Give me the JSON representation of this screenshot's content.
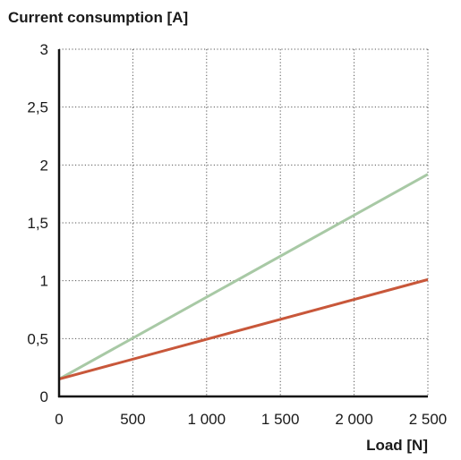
{
  "chart_data": {
    "type": "line",
    "ylabel": "Current consumption [A]",
    "xlabel": "Load [N]",
    "xlim": [
      0,
      2500
    ],
    "ylim": [
      0,
      3
    ],
    "x_ticks": [
      0,
      500,
      1000,
      1500,
      2000,
      2500
    ],
    "x_tick_labels": [
      "0",
      "500",
      "1 000",
      "1 500",
      "2 000",
      "2 500"
    ],
    "y_ticks": [
      0,
      0.5,
      1,
      1.5,
      2,
      2.5,
      3
    ],
    "y_tick_labels": [
      "0",
      "0,5",
      "1",
      "1,5",
      "2",
      "2,5",
      "3"
    ],
    "grid": true,
    "series": [
      {
        "color": "#a8c9a5",
        "x": [
          0,
          2500
        ],
        "y": [
          0.15,
          1.92
        ]
      },
      {
        "color": "#c8573a",
        "x": [
          0,
          2500
        ],
        "y": [
          0.15,
          1.01
        ]
      }
    ]
  }
}
